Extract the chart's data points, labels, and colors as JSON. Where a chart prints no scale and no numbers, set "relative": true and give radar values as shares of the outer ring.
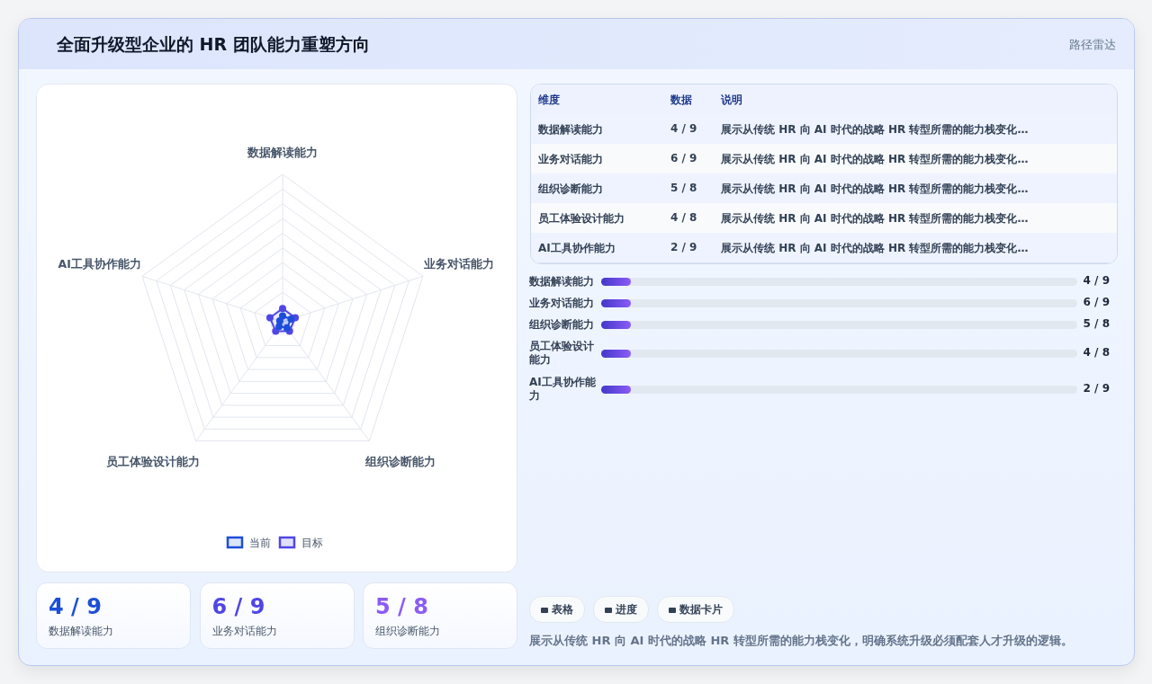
{
  "chart_data": [
    {
      "type": "radar",
      "relative": true,
      "legend": "bottom",
      "marker": "circle",
      "categories": [
        "数据解读能力",
        "业务对话能力",
        "组织诊断能力",
        "员工体验设计能力",
        "AI工具协作能力"
      ],
      "series": [
        {
          "name": "当前",
          "color": "#1d4ed8",
          "values": [
            0.04,
            0.06,
            0.05,
            0.04,
            0.02
          ]
        },
        {
          "name": "目标",
          "color": "#4f46e5",
          "values": [
            0.09,
            0.09,
            0.08,
            0.08,
            0.09
          ]
        }
      ]
    },
    {
      "type": "other",
      "categories": [
        "维度",
        "数据",
        "说明"
      ],
      "cell_labels": [
        [
          "数据解读能力",
          "4 / 9",
          "展示从传统 HR 向 AI 时代的战略 HR 转型所需的能力栈变化…"
        ],
        [
          "业务对话能力",
          "6 / 9",
          "展示从传统 HR 向 AI 时代的战略 HR 转型所需的能力栈变化…"
        ],
        [
          "组织诊断能力",
          "5 / 8",
          "展示从传统 HR 向 AI 时代的战略 HR 转型所需的能力栈变化…"
        ],
        [
          "员工体验设计能力",
          "4 / 8",
          "展示从传统 HR 向 AI 时代的战略 HR 转型所需的能力栈变化…"
        ],
        [
          "AI工具协作能力",
          "2 / 9",
          "展示从传统 HR 向 AI 时代的战略 HR 转型所需的能力栈变化…"
        ]
      ]
    },
    {
      "type": "other",
      "categories": [
        "数据解读能力",
        "业务对话能力",
        "组织诊断能力",
        "员工体验设计能力",
        "AI工具协作能力"
      ],
      "value_labels": [
        "4 / 9",
        "6 / 9",
        "5 / 8",
        "4 / 8",
        "2 / 9"
      ]
    },
    {
      "type": "other",
      "categories": [
        "数据解读能力",
        "业务对话能力",
        "组织诊断能力"
      ],
      "value_labels": [
        "4 / 9",
        "6 / 9",
        "5 / 8"
      ]
    },
    {
      "type": "other",
      "title": "全面升级型企业的 HR 团队能力重塑方向",
      "subtitle": "路径雷达",
      "annotations": [
        "表格",
        "进度",
        "数据卡片",
        "展示从传统 HR 向 AI 时代的战略 HR 转型所需的能力栈变化，明确系统升级必须配套人才升级的逻辑。"
      ]
    }
  ]
}
